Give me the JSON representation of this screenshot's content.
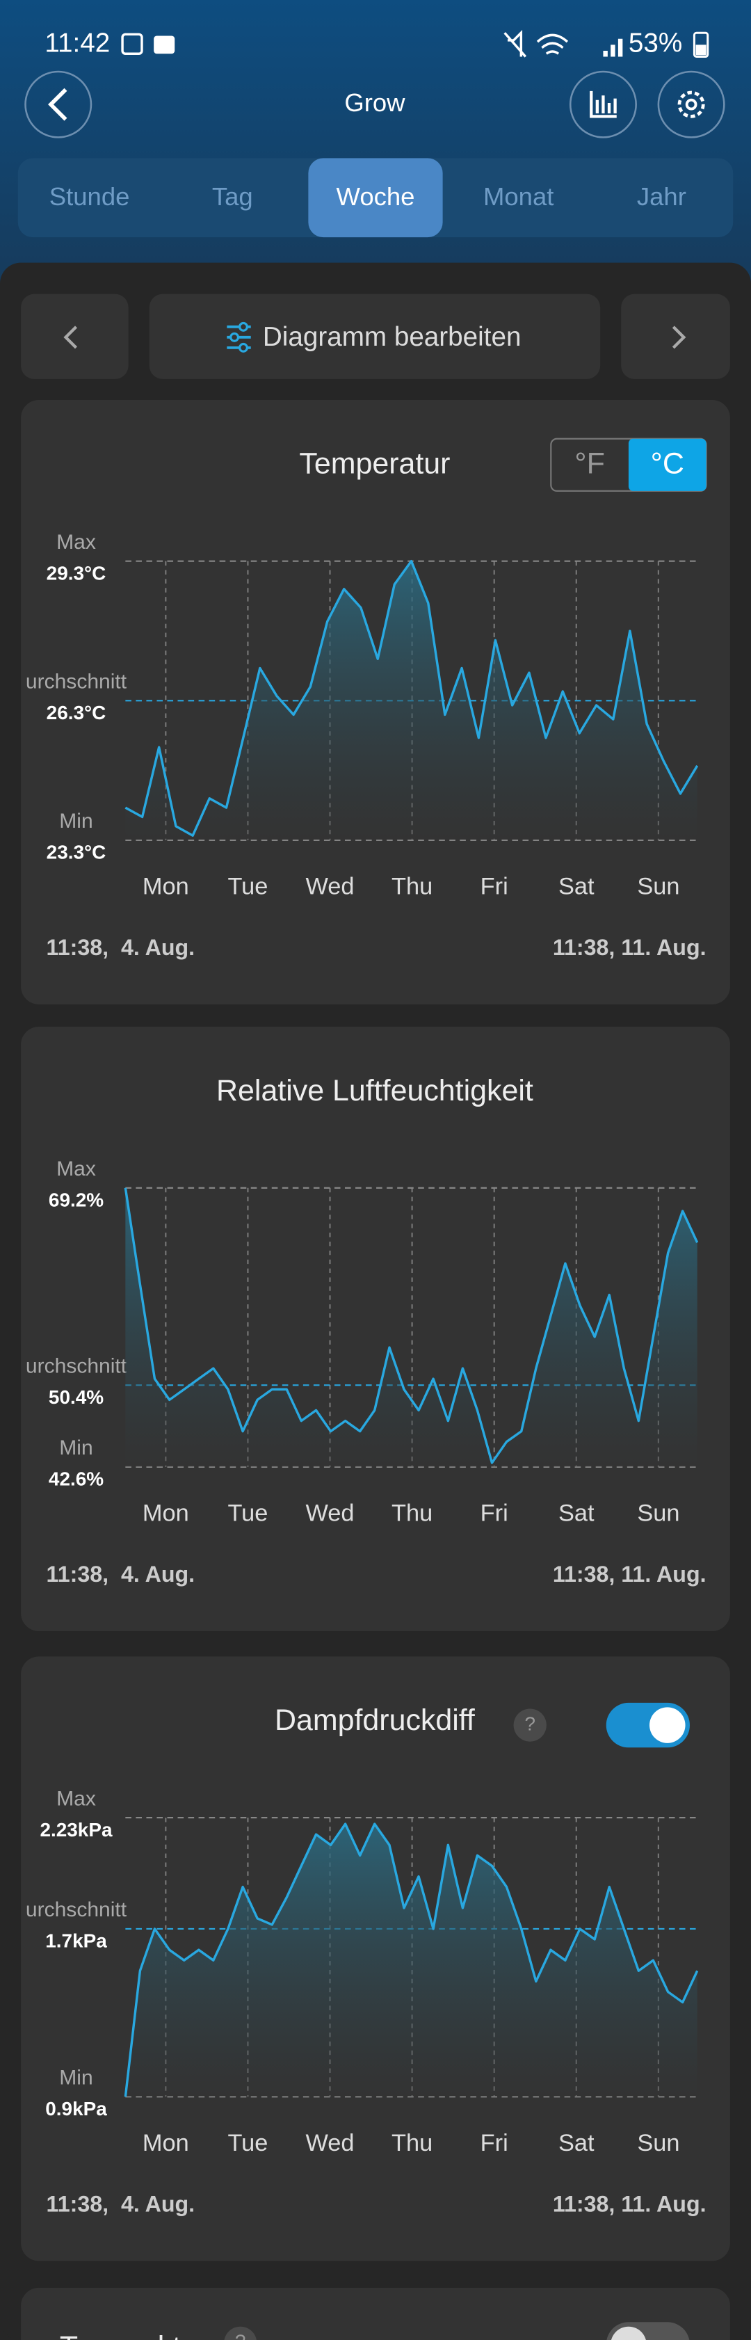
{
  "status_bar": {
    "time": "11:42",
    "battery": "53%"
  },
  "header": {
    "title": "Grow"
  },
  "tabs": {
    "items": [
      "Stunde",
      "Tag",
      "Woche",
      "Monat",
      "Jahr"
    ],
    "active": 2
  },
  "toolbar": {
    "label": "Diagramm bearbeiten"
  },
  "cards": [
    {
      "title": "Temperatur",
      "units": [
        "°F",
        "°C"
      ],
      "active_unit": 1,
      "ytick_names": [
        "Min",
        "urchschnitt",
        "Max"
      ],
      "ylim": [
        23.3,
        29.3
      ],
      "yticks": [
        {
          "value": 23.3,
          "label": "23.3°C"
        },
        {
          "value": 26.3,
          "label": "26.3°C"
        },
        {
          "value": 29.3,
          "label": "29.3°C"
        }
      ],
      "categories": [
        "Mon",
        "Tue",
        "Wed",
        "Thu",
        "Fri",
        "Sat",
        "Sun"
      ],
      "values": [
        24.0,
        23.8,
        25.3,
        23.6,
        23.4,
        24.2,
        24.0,
        25.5,
        27.0,
        26.4,
        26.0,
        26.6,
        28.0,
        28.7,
        28.3,
        27.2,
        28.8,
        29.3,
        28.4,
        26.0,
        27.0,
        25.5,
        27.6,
        26.2,
        26.9,
        25.5,
        26.5,
        25.6,
        26.2,
        25.9,
        27.8,
        25.8,
        25.0,
        24.3,
        24.9
      ],
      "start": "11:38,  4. Aug.",
      "end": "11:38, 11. Aug."
    },
    {
      "title": "Relative Luftfeuchtigkeit",
      "ytick_names": [
        "Min",
        "urchschnitt",
        "Max"
      ],
      "ylim": [
        42.6,
        69.2
      ],
      "yticks": [
        {
          "value": 42.6,
          "label": "42.6%"
        },
        {
          "value": 50.4,
          "label": "50.4%"
        },
        {
          "value": 69.2,
          "label": "69.2%"
        }
      ],
      "categories": [
        "Mon",
        "Tue",
        "Wed",
        "Thu",
        "Fri",
        "Sat",
        "Sun"
      ],
      "values": [
        69.2,
        60,
        51,
        49,
        50,
        51,
        52,
        50,
        46,
        49,
        50,
        50,
        47,
        48,
        46,
        47,
        46,
        48,
        54,
        50,
        48,
        51,
        47,
        52,
        48,
        43,
        45,
        46,
        52,
        57,
        62,
        58,
        55,
        59,
        52,
        47,
        55,
        63,
        67,
        64
      ],
      "start": "11:38,  4. Aug.",
      "end": "11:38, 11. Aug."
    },
    {
      "title": "Dampfdruckdiff",
      "help": "?",
      "ytick_names": [
        "Min",
        "urchschnitt",
        "Max"
      ],
      "ylim": [
        0.9,
        2.23
      ],
      "yticks": [
        {
          "value": 0.9,
          "label": "0.9kPa"
        },
        {
          "value": 1.7,
          "label": "1.7kPa"
        },
        {
          "value": 2.23,
          "label": "2.23kPa"
        }
      ],
      "categories": [
        "Mon",
        "Tue",
        "Wed",
        "Thu",
        "Fri",
        "Sat",
        "Sun"
      ],
      "values": [
        0.9,
        1.5,
        1.7,
        1.6,
        1.55,
        1.6,
        1.55,
        1.7,
        1.9,
        1.75,
        1.72,
        1.85,
        2.0,
        2.15,
        2.1,
        2.2,
        2.05,
        2.2,
        2.1,
        1.8,
        1.95,
        1.7,
        2.1,
        1.8,
        2.05,
        2.0,
        1.9,
        1.7,
        1.45,
        1.6,
        1.55,
        1.7,
        1.65,
        1.9,
        1.7,
        1.5,
        1.55,
        1.4,
        1.35,
        1.5
      ],
      "start": "11:38,  4. Aug.",
      "end": "11:38, 11. Aug."
    }
  ],
  "next_card": {
    "title": "Taupunkt",
    "help": "?"
  }
}
